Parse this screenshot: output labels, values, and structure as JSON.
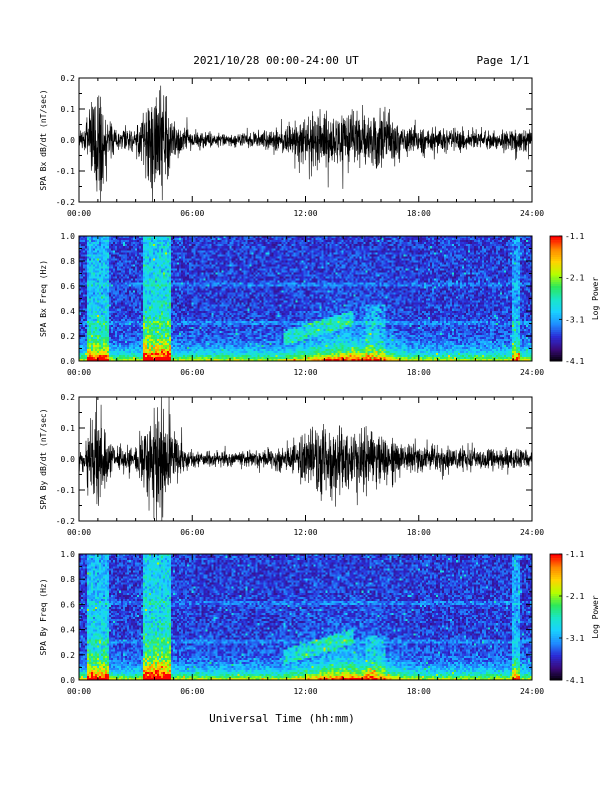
{
  "header": {
    "title": "2021/10/28  00:00-24:00 UT",
    "page": "Page 1/1"
  },
  "footer": {
    "xlabel": "Universal Time (hh:mm)"
  },
  "colors": {
    "waveform": "#000000",
    "colormap": [
      "#000000",
      "#3a0a7a",
      "#2b2bd6",
      "#1f8cff",
      "#19d1ff",
      "#19e6c8",
      "#2de85a",
      "#b4ff00",
      "#ffd400",
      "#ff8800",
      "#ff0000"
    ]
  },
  "chart_data": [
    {
      "type": "line",
      "ylabel": "SPA Bx dB/dt (nT/sec)",
      "xlim": [
        0,
        24
      ],
      "ylim": [
        -0.2,
        0.2
      ],
      "x_ticks": [
        "00:00",
        "06:00",
        "12:00",
        "18:00",
        "24:00"
      ],
      "y_ticks": [
        "-0.2",
        "-0.1",
        "0.0",
        "0.1",
        "0.2"
      ],
      "envelope_amplitude": [
        [
          0.0,
          0.04
        ],
        [
          0.3,
          0.05
        ],
        [
          0.6,
          0.12
        ],
        [
          0.8,
          0.2
        ],
        [
          1.2,
          0.2
        ],
        [
          1.4,
          0.08
        ],
        [
          2.0,
          0.04
        ],
        [
          3.0,
          0.05
        ],
        [
          3.5,
          0.12
        ],
        [
          3.8,
          0.2
        ],
        [
          4.6,
          0.2
        ],
        [
          5.0,
          0.07
        ],
        [
          6.0,
          0.03
        ],
        [
          8.0,
          0.025
        ],
        [
          10.0,
          0.03
        ],
        [
          11.5,
          0.06
        ],
        [
          12.0,
          0.09
        ],
        [
          12.5,
          0.12
        ],
        [
          13.0,
          0.1
        ],
        [
          14.0,
          0.1
        ],
        [
          15.0,
          0.09
        ],
        [
          16.0,
          0.1
        ],
        [
          17.0,
          0.06
        ],
        [
          18.0,
          0.05
        ],
        [
          20.0,
          0.04
        ],
        [
          22.0,
          0.035
        ],
        [
          23.5,
          0.05
        ],
        [
          24.0,
          0.03
        ]
      ]
    },
    {
      "type": "heatmap",
      "ylabel": "SPA Bx Freq (Hz)",
      "colorbar_label": "Log Power",
      "colorbar_ticks": [
        "-1.1",
        "-2.1",
        "-3.1",
        "-4.1"
      ],
      "xlim": [
        0,
        24
      ],
      "ylim": [
        0.0,
        1.0
      ],
      "zlim": [
        -4.1,
        -1.1
      ],
      "x_ticks": [
        "00:00",
        "06:00",
        "12:00",
        "18:00",
        "24:00"
      ],
      "y_ticks": [
        "0.0",
        "0.2",
        "0.4",
        "0.6",
        "0.8",
        "1.0"
      ]
    },
    {
      "type": "line",
      "ylabel": "SPA By dB/dt (nT/sec)",
      "xlim": [
        0,
        24
      ],
      "ylim": [
        -0.2,
        0.2
      ],
      "x_ticks": [
        "00:00",
        "06:00",
        "12:00",
        "18:00",
        "24:00"
      ],
      "y_ticks": [
        "-0.2",
        "-0.1",
        "0.0",
        "0.1",
        "0.2"
      ],
      "envelope_amplitude": [
        [
          0.0,
          0.03
        ],
        [
          0.3,
          0.05
        ],
        [
          0.6,
          0.14
        ],
        [
          0.9,
          0.2
        ],
        [
          1.3,
          0.15
        ],
        [
          1.6,
          0.06
        ],
        [
          2.0,
          0.04
        ],
        [
          3.0,
          0.05
        ],
        [
          3.5,
          0.14
        ],
        [
          3.8,
          0.2
        ],
        [
          4.7,
          0.2
        ],
        [
          5.0,
          0.08
        ],
        [
          6.0,
          0.03
        ],
        [
          8.0,
          0.025
        ],
        [
          10.0,
          0.03
        ],
        [
          11.5,
          0.06
        ],
        [
          12.0,
          0.1
        ],
        [
          12.5,
          0.13
        ],
        [
          13.0,
          0.11
        ],
        [
          14.0,
          0.13
        ],
        [
          15.0,
          0.12
        ],
        [
          16.0,
          0.1
        ],
        [
          17.0,
          0.06
        ],
        [
          18.0,
          0.05
        ],
        [
          20.0,
          0.04
        ],
        [
          22.0,
          0.035
        ],
        [
          23.5,
          0.04
        ],
        [
          24.0,
          0.03
        ]
      ]
    },
    {
      "type": "heatmap",
      "ylabel": "SPA By Freq (Hz)",
      "colorbar_label": "Log Power",
      "colorbar_ticks": [
        "-1.1",
        "-2.1",
        "-3.1",
        "-4.1"
      ],
      "xlim": [
        0,
        24
      ],
      "ylim": [
        0.0,
        1.0
      ],
      "zlim": [
        -4.1,
        -1.1
      ],
      "x_ticks": [
        "00:00",
        "06:00",
        "12:00",
        "18:00",
        "24:00"
      ],
      "y_ticks": [
        "0.0",
        "0.2",
        "0.4",
        "0.6",
        "0.8",
        "1.0"
      ]
    }
  ]
}
